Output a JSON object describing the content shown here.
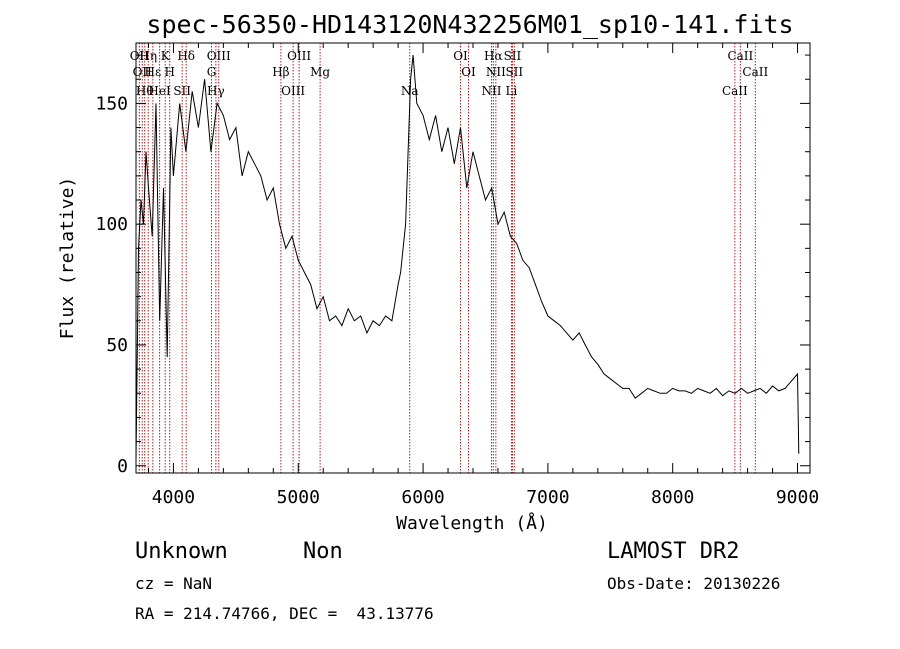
{
  "chart_data": {
    "type": "line",
    "title": "spec-56350-HD143120N432256M01_sp10-141.fits",
    "xlabel": "Wavelength (Å)",
    "ylabel": "Flux (relative)",
    "xlim": [
      3700,
      9100
    ],
    "ylim": [
      -3,
      175
    ],
    "xticks": [
      4000,
      5000,
      6000,
      7000,
      8000,
      9000
    ],
    "yticks": [
      0,
      50,
      100,
      150
    ],
    "series": [
      {
        "x": [
          3700,
          3720,
          3740,
          3760,
          3780,
          3800,
          3830,
          3860,
          3890,
          3920,
          3950,
          3980,
          4000,
          4050,
          4100,
          4150,
          4200,
          4250,
          4300,
          4350,
          4400,
          4450,
          4500,
          4550,
          4600,
          4650,
          4700,
          4750,
          4800,
          4850,
          4900,
          4950,
          5000,
          5050,
          5100,
          5150,
          5200,
          5250,
          5300,
          5350,
          5400,
          5450,
          5500,
          5550,
          5600,
          5650,
          5700,
          5750,
          5800,
          5820,
          5840,
          5860,
          5880,
          5900,
          5920,
          5950,
          6000,
          6050,
          6100,
          6150,
          6200,
          6250,
          6300,
          6350,
          6400,
          6450,
          6500,
          6550,
          6600,
          6650,
          6700,
          6750,
          6800,
          6850,
          6900,
          6950,
          7000,
          7050,
          7100,
          7150,
          7200,
          7250,
          7300,
          7350,
          7400,
          7450,
          7500,
          7550,
          7600,
          7650,
          7700,
          7750,
          7800,
          7850,
          7900,
          7950,
          8000,
          8050,
          8100,
          8150,
          8200,
          8250,
          8300,
          8350,
          8400,
          8450,
          8500,
          8550,
          8600,
          8650,
          8700,
          8750,
          8800,
          8850,
          8900,
          8950,
          9000,
          9010
        ],
        "y": [
          2,
          90,
          110,
          100,
          130,
          115,
          95,
          150,
          60,
          115,
          45,
          140,
          120,
          150,
          130,
          155,
          140,
          160,
          130,
          150,
          145,
          135,
          140,
          120,
          130,
          125,
          120,
          110,
          115,
          100,
          90,
          95,
          85,
          80,
          75,
          65,
          70,
          60,
          62,
          58,
          65,
          60,
          62,
          55,
          60,
          58,
          62,
          60,
          75,
          80,
          90,
          100,
          130,
          160,
          170,
          150,
          145,
          135,
          145,
          130,
          140,
          125,
          140,
          115,
          130,
          120,
          110,
          115,
          100,
          105,
          95,
          92,
          85,
          82,
          75,
          68,
          62,
          60,
          58,
          55,
          52,
          55,
          50,
          45,
          42,
          38,
          36,
          34,
          32,
          32,
          28,
          30,
          32,
          31,
          30,
          30,
          32,
          31,
          31,
          30,
          32,
          31,
          30,
          32,
          29,
          31,
          30,
          32,
          30,
          31,
          32,
          30,
          33,
          31,
          32,
          35,
          38,
          5
        ]
      }
    ],
    "lines": [
      {
        "x": 3727,
        "label": "OII"
      },
      {
        "x": 3750,
        "label": "OII"
      },
      {
        "x": 3770,
        "label": "Hθ"
      },
      {
        "x": 3798,
        "label": "Hη"
      },
      {
        "x": 3835,
        "label": "Hε"
      },
      {
        "x": 3889,
        "label": "HeI"
      },
      {
        "x": 3934,
        "label": "K"
      },
      {
        "x": 3970,
        "label": "H"
      },
      {
        "x": 4070,
        "label": "SII"
      },
      {
        "x": 4102,
        "label": "Hδ"
      },
      {
        "x": 4305,
        "label": "G"
      },
      {
        "x": 4340,
        "label": "Hγ"
      },
      {
        "x": 4363,
        "label": "OIII"
      },
      {
        "x": 4861,
        "label": "Hβ"
      },
      {
        "x": 4959,
        "label": "OIII"
      },
      {
        "x": 5007,
        "label": "OIII"
      },
      {
        "x": 5175,
        "label": "Mg"
      },
      {
        "x": 5893,
        "label": "Na"
      },
      {
        "x": 6300,
        "label": "OI"
      },
      {
        "x": 6364,
        "label": "OI"
      },
      {
        "x": 6548,
        "label": "NII"
      },
      {
        "x": 6563,
        "label": "Hα"
      },
      {
        "x": 6583,
        "label": "NII"
      },
      {
        "x": 6708,
        "label": "Li"
      },
      {
        "x": 6716,
        "label": "SII"
      },
      {
        "x": 6731,
        "label": "SII"
      },
      {
        "x": 8498,
        "label": "CaII"
      },
      {
        "x": 8542,
        "label": "CaII"
      },
      {
        "x": 8662,
        "label": "CaII"
      }
    ]
  },
  "info": {
    "class": "Unknown",
    "subclass": "Non",
    "cz": "cz = NaN",
    "radec": "RA = 214.74766, DEC =  43.13776",
    "survey": "LAMOST DR2",
    "obsdate": "Obs-Date: 20130226"
  }
}
